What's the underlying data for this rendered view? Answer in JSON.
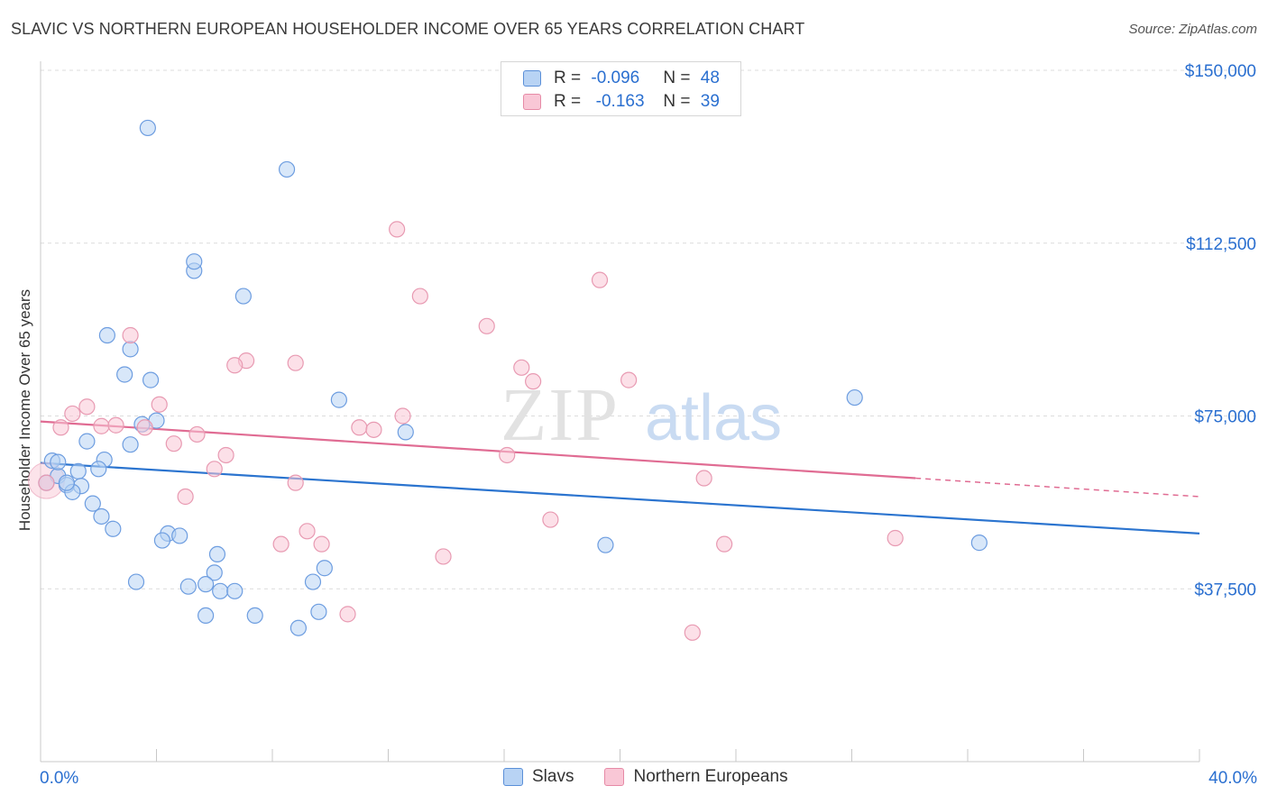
{
  "title": "SLAVIC VS NORTHERN EUROPEAN HOUSEHOLDER INCOME OVER 65 YEARS CORRELATION CHART",
  "source": "Source: ZipAtlas.com",
  "legend_top": {
    "rows": [
      {
        "r_label": "R = ",
        "r_value": "-0.096",
        "n_label": "N = ",
        "n_value": "48"
      },
      {
        "r_label": "R = ",
        "r_value": " -0.163",
        "n_label": "N = ",
        "n_value": "39"
      }
    ]
  },
  "legend_bottom": {
    "series1": "Slavs",
    "series2": "Northern Europeans"
  },
  "watermark": {
    "zip": "ZIP",
    "atlas": "atlas"
  },
  "colors": {
    "blue_fill": "#b8d3f4",
    "blue_stroke": "#6d9de0",
    "blue_line": "#2b74cf",
    "pink_fill": "#f9c7d6",
    "pink_stroke": "#e89ab2",
    "pink_line": "#e06c93",
    "axis_label": "#2a6fd0",
    "grid": "#dcdcdc"
  },
  "chart_data": {
    "type": "scatter",
    "title": "SLAVIC VS NORTHERN EUROPEAN HOUSEHOLDER INCOME OVER 65 YEARS CORRELATION CHART",
    "xlabel": "",
    "ylabel": "Householder Income Over 65 years",
    "xlim": [
      0,
      40
    ],
    "ylim": [
      0,
      157000
    ],
    "x_tick_labels": [
      "0.0%",
      "40.0%"
    ],
    "y_ticks": [
      37500,
      75000,
      112500,
      150000
    ],
    "y_tick_labels": [
      "$37,500",
      "$75,000",
      "$112,500",
      "$150,000"
    ],
    "grid": true,
    "series": [
      {
        "name": "Slavs",
        "color": "#6d9de0",
        "trend": {
          "x0": 0,
          "y0": 64800,
          "x1": 40,
          "y1": 49500
        },
        "points": [
          [
            3.7,
            137500
          ],
          [
            8.5,
            128500
          ],
          [
            5.3,
            106500
          ],
          [
            5.3,
            108500
          ],
          [
            7.0,
            101000
          ],
          [
            2.3,
            92500
          ],
          [
            3.1,
            89500
          ],
          [
            2.9,
            84000
          ],
          [
            3.8,
            82800
          ],
          [
            10.3,
            78500
          ],
          [
            28.1,
            79000
          ],
          [
            3.5,
            73200
          ],
          [
            4.0,
            74000
          ],
          [
            12.6,
            71500
          ],
          [
            1.6,
            69500
          ],
          [
            3.1,
            68800
          ],
          [
            0.4,
            65300
          ],
          [
            2.2,
            65500
          ],
          [
            0.6,
            62000
          ],
          [
            1.3,
            63000
          ],
          [
            2.0,
            63500
          ],
          [
            0.9,
            60000
          ],
          [
            1.4,
            59800
          ],
          [
            1.1,
            58500
          ],
          [
            1.8,
            56000
          ],
          [
            2.1,
            53200
          ],
          [
            2.5,
            50500
          ],
          [
            4.4,
            49500
          ],
          [
            4.8,
            49000
          ],
          [
            4.2,
            48000
          ],
          [
            19.5,
            47000
          ],
          [
            32.4,
            47500
          ],
          [
            6.1,
            45000
          ],
          [
            9.8,
            42000
          ],
          [
            6.0,
            41000
          ],
          [
            3.3,
            39000
          ],
          [
            5.7,
            38500
          ],
          [
            5.1,
            38000
          ],
          [
            9.4,
            39000
          ],
          [
            6.2,
            37000
          ],
          [
            6.7,
            37000
          ],
          [
            5.7,
            31700
          ],
          [
            7.4,
            31700
          ],
          [
            9.6,
            32500
          ],
          [
            8.9,
            29000
          ],
          [
            0.2,
            60500
          ],
          [
            0.6,
            65000
          ],
          [
            0.9,
            60500
          ]
        ]
      },
      {
        "name": "Northern Europeans",
        "color": "#e89ab2",
        "trend": {
          "x0": 0,
          "y0": 73800,
          "x1": 30.2,
          "y1": 61500,
          "dash_x1": 40,
          "dash_y1": 57500
        },
        "points": [
          [
            12.3,
            115500
          ],
          [
            19.3,
            104500
          ],
          [
            13.1,
            101000
          ],
          [
            15.4,
            94500
          ],
          [
            3.1,
            92500
          ],
          [
            7.1,
            87000
          ],
          [
            6.7,
            86000
          ],
          [
            8.8,
            86500
          ],
          [
            16.6,
            85500
          ],
          [
            17.0,
            82500
          ],
          [
            20.3,
            82800
          ],
          [
            1.6,
            77000
          ],
          [
            4.1,
            77500
          ],
          [
            1.1,
            75500
          ],
          [
            12.5,
            75000
          ],
          [
            0.7,
            72500
          ],
          [
            2.1,
            72800
          ],
          [
            2.6,
            73000
          ],
          [
            11.0,
            72500
          ],
          [
            11.5,
            72000
          ],
          [
            3.6,
            72500
          ],
          [
            5.4,
            71000
          ],
          [
            4.6,
            69000
          ],
          [
            16.1,
            66500
          ],
          [
            6.4,
            66500
          ],
          [
            6.0,
            63500
          ],
          [
            22.9,
            61500
          ],
          [
            8.8,
            60500
          ],
          [
            5.0,
            57500
          ],
          [
            0.2,
            60500
          ],
          [
            17.6,
            52500
          ],
          [
            8.3,
            47200
          ],
          [
            9.7,
            47200
          ],
          [
            23.6,
            47200
          ],
          [
            29.5,
            48500
          ],
          [
            9.2,
            50000
          ],
          [
            13.9,
            44500
          ],
          [
            10.6,
            32000
          ],
          [
            22.5,
            28000
          ]
        ]
      }
    ]
  }
}
